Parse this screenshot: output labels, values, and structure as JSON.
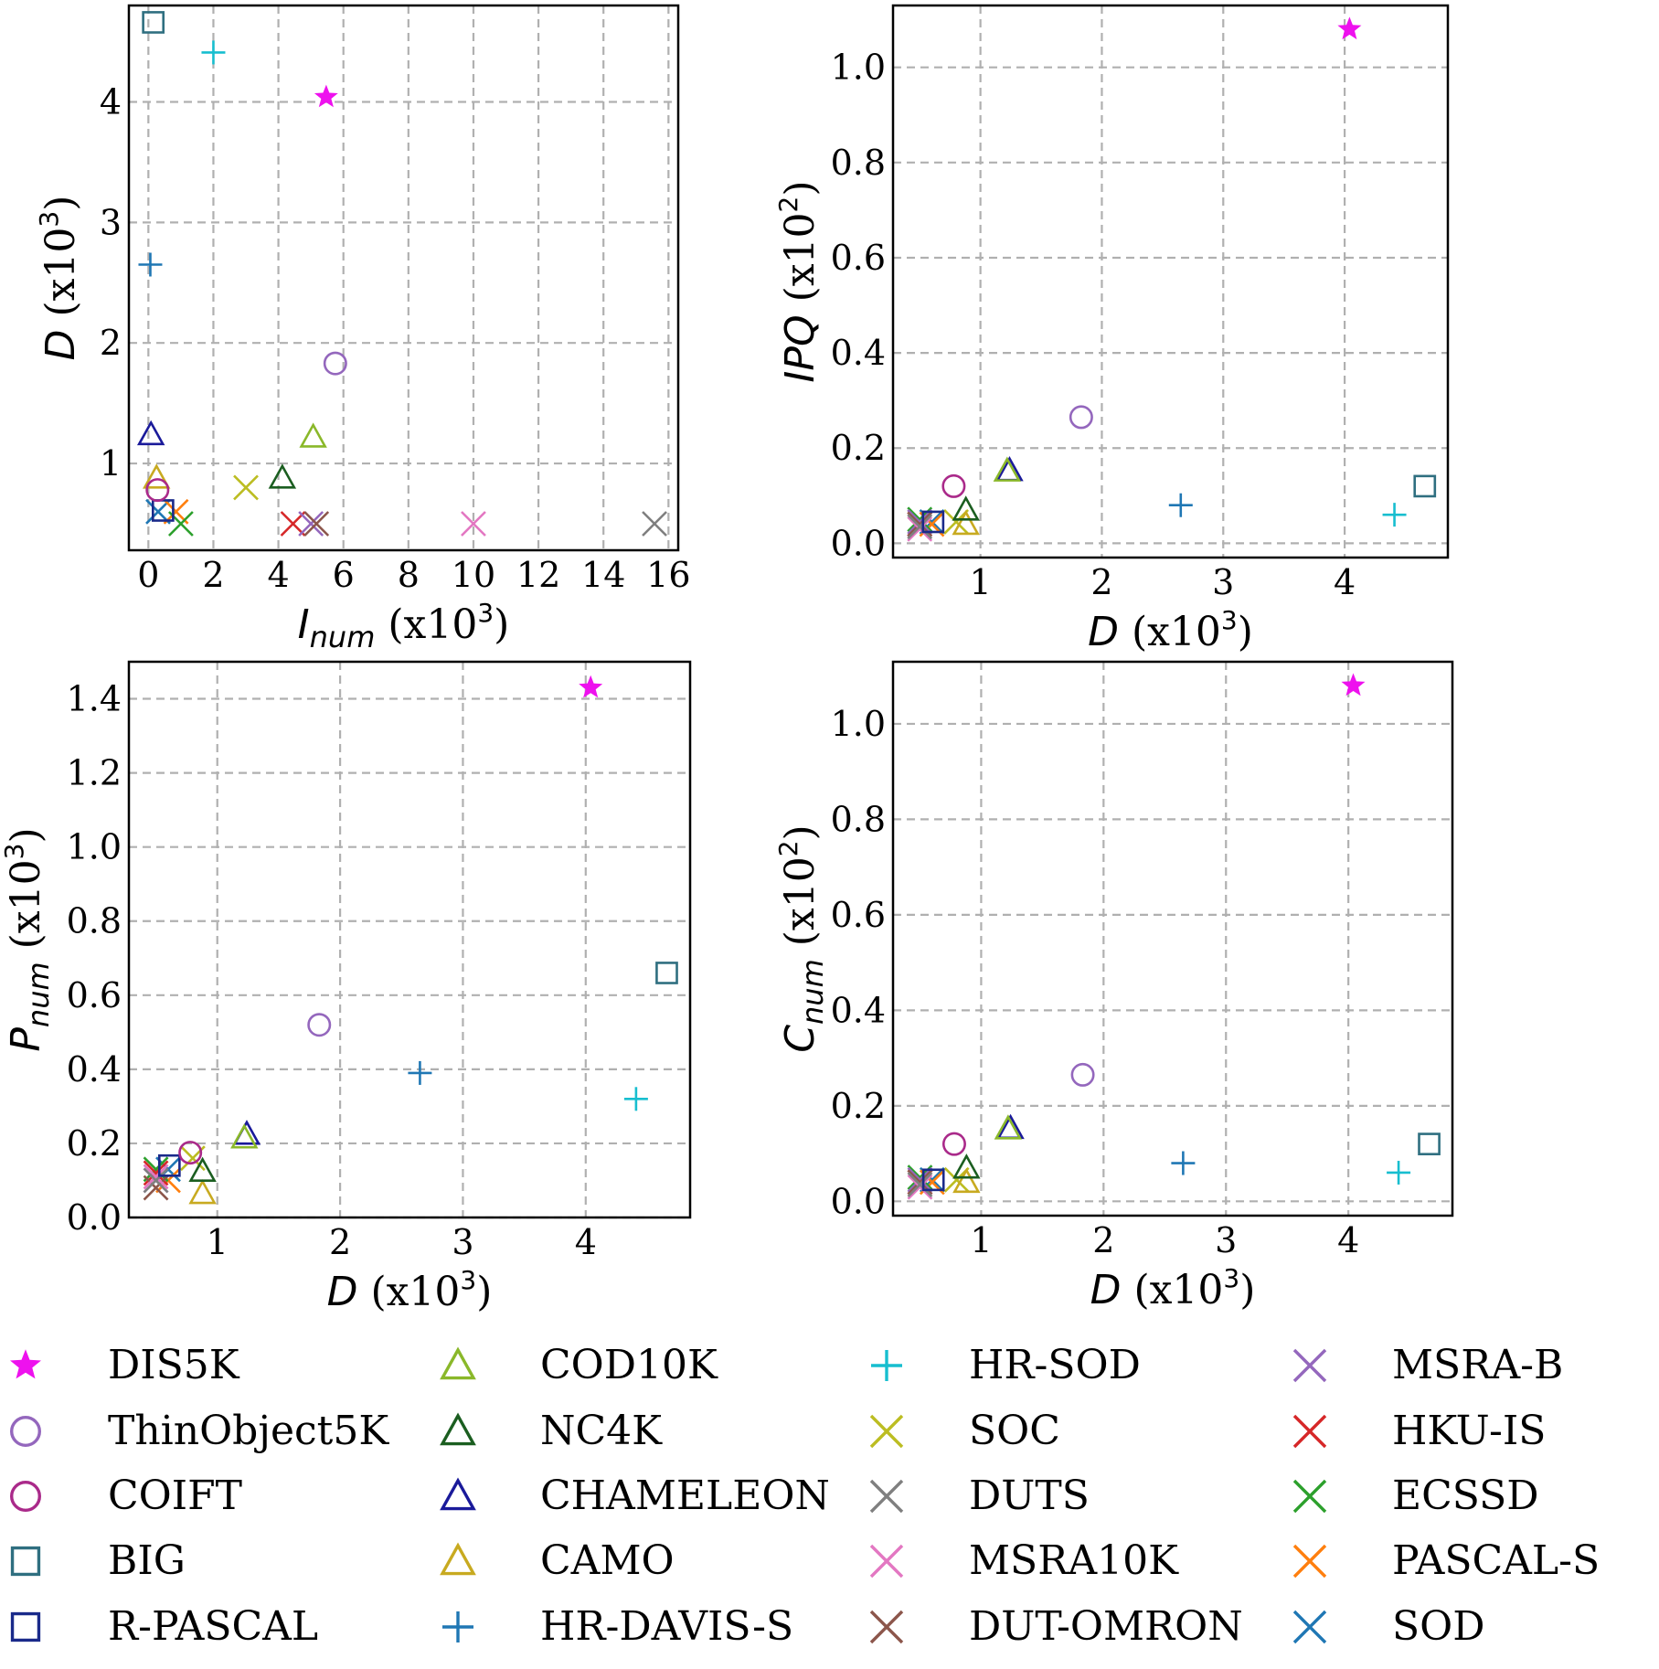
{
  "figure": {
    "colors": {
      "DIS5K": "#ee11ee",
      "ThinObject5K": "#9467bd",
      "COIFT": "#aa2a8a",
      "BIG": "#2f6f80",
      "R-PASCAL": "#1a2a8a",
      "COD10K": "#8ab82a",
      "NC4K": "#1b5e20",
      "CHAMELEON": "#1a1a9a",
      "CAMO": "#c8aa20",
      "HR-DAVIS-S": "#1f77b4",
      "HR-SOD": "#17becf",
      "SOC": "#bcbd22",
      "DUTS": "#7f7f7f",
      "MSRA10K": "#e377c2",
      "DUT-OMRON": "#8c564b",
      "MSRA-B": "#9467bd",
      "HKU-IS": "#d62728",
      "ECSSD": "#2ca02c",
      "PASCAL-S": "#ff7f0e",
      "SOD": "#1f77b4"
    },
    "markers": {
      "DIS5K": "star",
      "ThinObject5K": "circle",
      "COIFT": "circle",
      "BIG": "square",
      "R-PASCAL": "square",
      "COD10K": "triangle",
      "NC4K": "triangle",
      "CHAMELEON": "triangle",
      "CAMO": "triangle",
      "HR-DAVIS-S": "plus",
      "HR-SOD": "plus",
      "SOC": "x",
      "DUTS": "x",
      "MSRA10K": "x",
      "DUT-OMRON": "x",
      "MSRA-B": "x",
      "HKU-IS": "x",
      "ECSSD": "x",
      "PASCAL-S": "x",
      "SOD": "x"
    }
  },
  "chart_data": [
    {
      "type": "scatter",
      "xlabel_main": "I",
      "xlabel_sub": "num",
      "xlabel_unit": "(x10",
      "xlabel_exp": "3",
      "xlabel_close": ")",
      "ylabel_main": "D",
      "ylabel_sub": "",
      "ylabel_unit": "(x10",
      "ylabel_exp": "3",
      "ylabel_close": ")",
      "xlim": [
        -0.6,
        16.3
      ],
      "ylim": [
        0.28,
        4.8
      ],
      "xticks": [
        0,
        2,
        4,
        6,
        8,
        10,
        12,
        14,
        16
      ],
      "xtick_labels": [
        "0",
        "2",
        "4",
        "6",
        "8",
        "10",
        "12",
        "14",
        "16"
      ],
      "yticks": [
        1,
        2,
        3,
        4
      ],
      "ytick_labels": [
        "1",
        "2",
        "3",
        "4"
      ],
      "grid": true,
      "points": [
        {
          "name": "DIS5K",
          "x": 5.47,
          "y": 4.04
        },
        {
          "name": "ThinObject5K",
          "x": 5.75,
          "y": 1.83
        },
        {
          "name": "COIFT",
          "x": 0.28,
          "y": 0.78
        },
        {
          "name": "BIG",
          "x": 0.15,
          "y": 4.66
        },
        {
          "name": "R-PASCAL",
          "x": 0.45,
          "y": 0.61
        },
        {
          "name": "COD10K",
          "x": 5.07,
          "y": 1.22
        },
        {
          "name": "NC4K",
          "x": 4.12,
          "y": 0.88
        },
        {
          "name": "CHAMELEON",
          "x": 0.08,
          "y": 1.24
        },
        {
          "name": "CAMO",
          "x": 0.25,
          "y": 0.88
        },
        {
          "name": "HR-DAVIS-S",
          "x": 0.06,
          "y": 2.65
        },
        {
          "name": "HR-SOD",
          "x": 2.0,
          "y": 4.41
        },
        {
          "name": "SOC",
          "x": 3.0,
          "y": 0.8
        },
        {
          "name": "DUTS",
          "x": 15.57,
          "y": 0.5
        },
        {
          "name": "MSRA10K",
          "x": 10.0,
          "y": 0.5
        },
        {
          "name": "DUT-OMRON",
          "x": 5.17,
          "y": 0.5
        },
        {
          "name": "MSRA-B",
          "x": 5.0,
          "y": 0.5
        },
        {
          "name": "HKU-IS",
          "x": 4.45,
          "y": 0.5
        },
        {
          "name": "ECSSD",
          "x": 1.0,
          "y": 0.5
        },
        {
          "name": "PASCAL-S",
          "x": 0.85,
          "y": 0.6
        },
        {
          "name": "SOD",
          "x": 0.3,
          "y": 0.6
        }
      ]
    },
    {
      "type": "scatter",
      "xlabel_main": "D",
      "xlabel_sub": "",
      "xlabel_unit": "(x10",
      "xlabel_exp": "3",
      "xlabel_close": ")",
      "ylabel_main": "IPQ",
      "ylabel_sub": "",
      "ylabel_unit": "(x10",
      "ylabel_exp": "2",
      "ylabel_close": ")",
      "xlim": [
        0.28,
        4.85
      ],
      "ylim": [
        -0.03,
        1.13
      ],
      "xticks": [
        1,
        2,
        3,
        4
      ],
      "xtick_labels": [
        "1",
        "2",
        "3",
        "4"
      ],
      "yticks": [
        0.0,
        0.2,
        0.4,
        0.6,
        0.8,
        1.0
      ],
      "ytick_labels": [
        "0.0",
        "0.2",
        "0.4",
        "0.6",
        "0.8",
        "1.0"
      ],
      "grid": true,
      "points": [
        {
          "name": "DIS5K",
          "x": 4.04,
          "y": 1.08
        },
        {
          "name": "ThinObject5K",
          "x": 1.83,
          "y": 0.265
        },
        {
          "name": "COIFT",
          "x": 0.78,
          "y": 0.12
        },
        {
          "name": "BIG",
          "x": 4.66,
          "y": 0.12
        },
        {
          "name": "R-PASCAL",
          "x": 0.61,
          "y": 0.045
        },
        {
          "name": "COD10K",
          "x": 1.22,
          "y": 0.152
        },
        {
          "name": "NC4K",
          "x": 0.88,
          "y": 0.07
        },
        {
          "name": "CHAMELEON",
          "x": 1.24,
          "y": 0.153
        },
        {
          "name": "CAMO",
          "x": 0.88,
          "y": 0.04
        },
        {
          "name": "HR-DAVIS-S",
          "x": 2.65,
          "y": 0.08
        },
        {
          "name": "HR-SOD",
          "x": 4.41,
          "y": 0.06
        },
        {
          "name": "SOC",
          "x": 0.8,
          "y": 0.045
        },
        {
          "name": "DUTS",
          "x": 0.5,
          "y": 0.035
        },
        {
          "name": "MSRA10K",
          "x": 0.5,
          "y": 0.03
        },
        {
          "name": "DUT-OMRON",
          "x": 0.5,
          "y": 0.04
        },
        {
          "name": "MSRA-B",
          "x": 0.5,
          "y": 0.045
        },
        {
          "name": "HKU-IS",
          "x": 0.5,
          "y": 0.04
        },
        {
          "name": "ECSSD",
          "x": 0.5,
          "y": 0.05
        },
        {
          "name": "PASCAL-S",
          "x": 0.6,
          "y": 0.04
        },
        {
          "name": "SOD",
          "x": 0.6,
          "y": 0.045
        }
      ]
    },
    {
      "type": "scatter",
      "xlabel_main": "D",
      "xlabel_sub": "",
      "xlabel_unit": "(x10",
      "xlabel_exp": "3",
      "xlabel_close": ")",
      "ylabel_main": "P",
      "ylabel_sub": "num",
      "ylabel_unit": "(x10",
      "ylabel_exp": "3",
      "ylabel_close": ")",
      "xlim": [
        0.28,
        4.85
      ],
      "ylim": [
        0.0,
        1.5
      ],
      "xticks": [
        1,
        2,
        3,
        4
      ],
      "xtick_labels": [
        "1",
        "2",
        "3",
        "4"
      ],
      "yticks": [
        0.0,
        0.2,
        0.4,
        0.6,
        0.8,
        1.0,
        1.2,
        1.4
      ],
      "ytick_labels": [
        "0.0",
        "0.2",
        "0.4",
        "0.6",
        "0.8",
        "1.0",
        "1.2",
        "1.4"
      ],
      "grid": true,
      "points": [
        {
          "name": "DIS5K",
          "x": 4.04,
          "y": 1.43
        },
        {
          "name": "ThinObject5K",
          "x": 1.83,
          "y": 0.52
        },
        {
          "name": "COIFT",
          "x": 0.78,
          "y": 0.175
        },
        {
          "name": "BIG",
          "x": 4.66,
          "y": 0.66
        },
        {
          "name": "R-PASCAL",
          "x": 0.61,
          "y": 0.14
        },
        {
          "name": "COD10K",
          "x": 1.22,
          "y": 0.215
        },
        {
          "name": "NC4K",
          "x": 0.88,
          "y": 0.125
        },
        {
          "name": "CHAMELEON",
          "x": 1.24,
          "y": 0.225
        },
        {
          "name": "CAMO",
          "x": 0.88,
          "y": 0.065
        },
        {
          "name": "HR-DAVIS-S",
          "x": 2.65,
          "y": 0.39
        },
        {
          "name": "HR-SOD",
          "x": 4.41,
          "y": 0.32
        },
        {
          "name": "SOC",
          "x": 0.8,
          "y": 0.16
        },
        {
          "name": "DUTS",
          "x": 0.5,
          "y": 0.1
        },
        {
          "name": "MSRA10K",
          "x": 0.5,
          "y": 0.11
        },
        {
          "name": "DUT-OMRON",
          "x": 0.5,
          "y": 0.08
        },
        {
          "name": "MSRA-B",
          "x": 0.5,
          "y": 0.1
        },
        {
          "name": "HKU-IS",
          "x": 0.5,
          "y": 0.12
        },
        {
          "name": "ECSSD",
          "x": 0.5,
          "y": 0.13
        },
        {
          "name": "PASCAL-S",
          "x": 0.6,
          "y": 0.1
        },
        {
          "name": "SOD",
          "x": 0.6,
          "y": 0.13
        }
      ]
    },
    {
      "type": "scatter",
      "xlabel_main": "D",
      "xlabel_sub": "",
      "xlabel_unit": "(x10",
      "xlabel_exp": "3",
      "xlabel_close": ")",
      "ylabel_main": "C",
      "ylabel_sub": "num",
      "ylabel_unit": "(x10",
      "ylabel_exp": "2",
      "ylabel_close": ")",
      "xlim": [
        0.28,
        4.85
      ],
      "ylim": [
        -0.03,
        1.13
      ],
      "xticks": [
        1,
        2,
        3,
        4
      ],
      "xtick_labels": [
        "1",
        "2",
        "3",
        "4"
      ],
      "yticks": [
        0.0,
        0.2,
        0.4,
        0.6,
        0.8,
        1.0
      ],
      "ytick_labels": [
        "0.0",
        "0.2",
        "0.4",
        "0.6",
        "0.8",
        "1.0"
      ],
      "grid": true,
      "points": [
        {
          "name": "DIS5K",
          "x": 4.04,
          "y": 1.08
        },
        {
          "name": "ThinObject5K",
          "x": 1.83,
          "y": 0.265
        },
        {
          "name": "COIFT",
          "x": 0.78,
          "y": 0.12
        },
        {
          "name": "BIG",
          "x": 4.66,
          "y": 0.12
        },
        {
          "name": "R-PASCAL",
          "x": 0.61,
          "y": 0.045
        },
        {
          "name": "COD10K",
          "x": 1.22,
          "y": 0.152
        },
        {
          "name": "NC4K",
          "x": 0.88,
          "y": 0.07
        },
        {
          "name": "CHAMELEON",
          "x": 1.24,
          "y": 0.153
        },
        {
          "name": "CAMO",
          "x": 0.88,
          "y": 0.04
        },
        {
          "name": "HR-DAVIS-S",
          "x": 2.65,
          "y": 0.08
        },
        {
          "name": "HR-SOD",
          "x": 4.41,
          "y": 0.06
        },
        {
          "name": "SOC",
          "x": 0.8,
          "y": 0.045
        },
        {
          "name": "DUTS",
          "x": 0.5,
          "y": 0.035
        },
        {
          "name": "MSRA10K",
          "x": 0.5,
          "y": 0.03
        },
        {
          "name": "DUT-OMRON",
          "x": 0.5,
          "y": 0.04
        },
        {
          "name": "MSRA-B",
          "x": 0.5,
          "y": 0.045
        },
        {
          "name": "HKU-IS",
          "x": 0.5,
          "y": 0.04
        },
        {
          "name": "ECSSD",
          "x": 0.5,
          "y": 0.05
        },
        {
          "name": "PASCAL-S",
          "x": 0.6,
          "y": 0.04
        },
        {
          "name": "SOD",
          "x": 0.6,
          "y": 0.045
        }
      ]
    }
  ],
  "legend": {
    "placement": "bottom",
    "columns": [
      [
        "DIS5K",
        "ThinObject5K",
        "COIFT",
        "BIG",
        "R-PASCAL"
      ],
      [
        "COD10K",
        "NC4K",
        "CHAMELEON",
        "CAMO",
        "HR-DAVIS-S"
      ],
      [
        "HR-SOD",
        "SOC",
        "DUTS",
        "MSRA10K",
        "DUT-OMRON"
      ],
      [
        "MSRA-B",
        "HKU-IS",
        "ECSSD",
        "PASCAL-S",
        "SOD"
      ]
    ]
  }
}
